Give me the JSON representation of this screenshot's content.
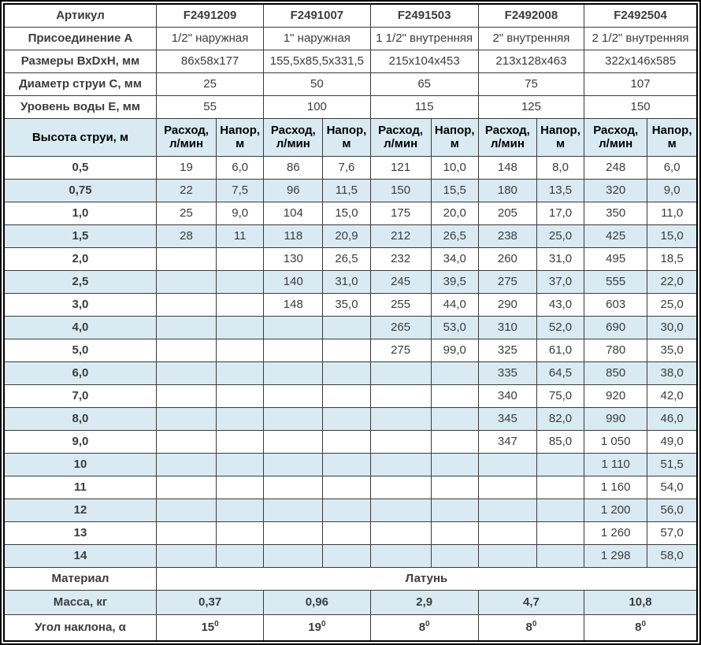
{
  "colors": {
    "row_alt_blue": "#d9eaf3",
    "article_blue": "#1848a0",
    "grid_line": "#3a3a3a",
    "text_dark": "#3c3c3c"
  },
  "table": {
    "spec_rows": [
      {
        "label": "Артикул",
        "values": [
          "F2491209",
          "F2491007",
          "F2491503",
          "F2492008",
          "F2492504"
        ]
      },
      {
        "label": "Присоединение А",
        "values": [
          "1/2\" наружная",
          "1\" наружная",
          "1 1/2\" внутренняя",
          "2\" внутренняя",
          "2 1/2\" внутренняя"
        ]
      },
      {
        "label": "Размеры ВхDхН, мм",
        "values": [
          "86х58х177",
          "155,5х85,5х331,5",
          "215х104х453",
          "213х128х463",
          "322х146х585"
        ]
      },
      {
        "label": "Диаметр струи С, мм",
        "values": [
          "25",
          "50",
          "65",
          "75",
          "107"
        ]
      },
      {
        "label": "Уровень воды Е, мм",
        "values": [
          "55",
          "100",
          "115",
          "125",
          "150"
        ]
      }
    ],
    "jet_header": {
      "label": "Высота струи, м",
      "flow_label": "Расход, л/мин",
      "head_label": "Напор, м"
    },
    "jet_rows": [
      {
        "height": "0,5",
        "cells": [
          "19",
          "6,0",
          "86",
          "7,6",
          "121",
          "10,0",
          "148",
          "8,0",
          "248",
          "6,0"
        ]
      },
      {
        "height": "0,75",
        "cells": [
          "22",
          "7,5",
          "96",
          "11,5",
          "150",
          "15,5",
          "180",
          "13,5",
          "320",
          "9,0"
        ]
      },
      {
        "height": "1,0",
        "cells": [
          "25",
          "9,0",
          "104",
          "15,0",
          "175",
          "20,0",
          "205",
          "17,0",
          "350",
          "11,0"
        ]
      },
      {
        "height": "1,5",
        "cells": [
          "28",
          "11",
          "118",
          "20,9",
          "212",
          "26,5",
          "238",
          "25,0",
          "425",
          "15,0"
        ]
      },
      {
        "height": "2,0",
        "cells": [
          "",
          "",
          "130",
          "26,5",
          "232",
          "34,0",
          "260",
          "31,0",
          "495",
          "18,5"
        ]
      },
      {
        "height": "2,5",
        "cells": [
          "",
          "",
          "140",
          "31,0",
          "245",
          "39,5",
          "275",
          "37,0",
          "555",
          "22,0"
        ]
      },
      {
        "height": "3,0",
        "cells": [
          "",
          "",
          "148",
          "35,0",
          "255",
          "44,0",
          "290",
          "43,0",
          "603",
          "25,0"
        ]
      },
      {
        "height": "4,0",
        "cells": [
          "",
          "",
          "",
          "",
          "265",
          "53,0",
          "310",
          "52,0",
          "690",
          "30,0"
        ]
      },
      {
        "height": "5,0",
        "cells": [
          "",
          "",
          "",
          "",
          "275",
          "99,0",
          "325",
          "61,0",
          "780",
          "35,0"
        ]
      },
      {
        "height": "6,0",
        "cells": [
          "",
          "",
          "",
          "",
          "",
          "",
          "335",
          "64,5",
          "850",
          "38,0"
        ]
      },
      {
        "height": "7,0",
        "cells": [
          "",
          "",
          "",
          "",
          "",
          "",
          "340",
          "75,0",
          "920",
          "42,0"
        ]
      },
      {
        "height": "8,0",
        "cells": [
          "",
          "",
          "",
          "",
          "",
          "",
          "345",
          "82,0",
          "990",
          "46,0"
        ]
      },
      {
        "height": "9,0",
        "cells": [
          "",
          "",
          "",
          "",
          "",
          "",
          "347",
          "85,0",
          "1 050",
          "49,0"
        ]
      },
      {
        "height": "10",
        "cells": [
          "",
          "",
          "",
          "",
          "",
          "",
          "",
          "",
          "1 110",
          "51,5"
        ]
      },
      {
        "height": "11",
        "cells": [
          "",
          "",
          "",
          "",
          "",
          "",
          "",
          "",
          "1 160",
          "54,0"
        ]
      },
      {
        "height": "12",
        "cells": [
          "",
          "",
          "",
          "",
          "",
          "",
          "",
          "",
          "1 200",
          "56,0"
        ]
      },
      {
        "height": "13",
        "cells": [
          "",
          "",
          "",
          "",
          "",
          "",
          "",
          "",
          "1 260",
          "57,0"
        ]
      },
      {
        "height": "14",
        "cells": [
          "",
          "",
          "",
          "",
          "",
          "",
          "",
          "",
          "1 298",
          "58,0"
        ]
      }
    ],
    "material_row": {
      "label": "Материал",
      "value": "Латунь"
    },
    "mass_row": {
      "label": "Масса, кг",
      "values": [
        "0,37",
        "0,96",
        "2,9",
        "4,7",
        "10,8"
      ]
    },
    "angle_row": {
      "label": "Угол наклона, α",
      "values": [
        {
          "base": "15",
          "sup": "0"
        },
        {
          "base": "19",
          "sup": "0"
        },
        {
          "base": "8",
          "sup": "0"
        },
        {
          "base": "8",
          "sup": "0"
        },
        {
          "base": "8",
          "sup": "0"
        }
      ]
    }
  }
}
